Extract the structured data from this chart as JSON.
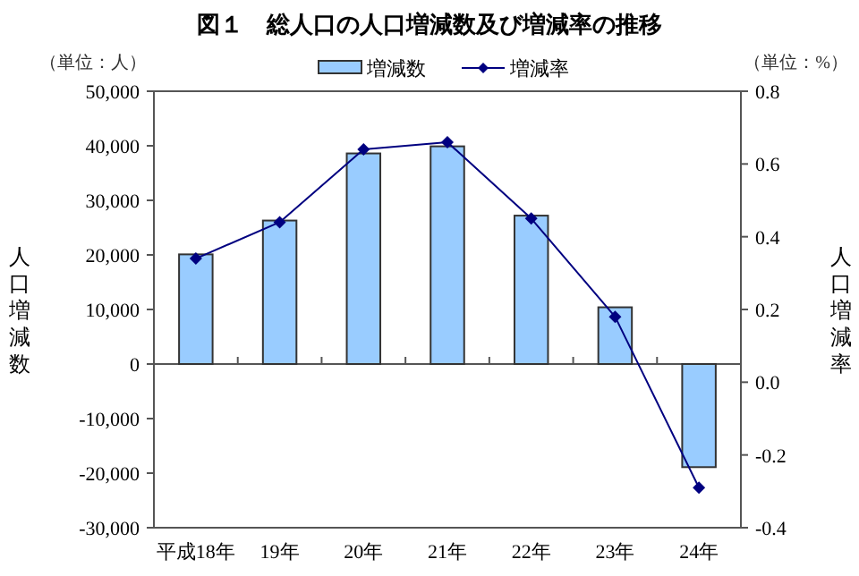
{
  "chart_data": {
    "type": "bar",
    "title": "図１　総人口の人口増減数及び増減率の推移",
    "categories": [
      "平成18年",
      "19年",
      "20年",
      "21年",
      "22年",
      "23年",
      "24年"
    ],
    "series": [
      {
        "name": "増減数",
        "color": "#99ccff",
        "values": [
          20100,
          26300,
          38600,
          39900,
          27200,
          10400,
          -18900
        ]
      },
      {
        "name": "増減率",
        "type": "line",
        "axis": "y2",
        "color": "#000080",
        "marker": "diamond",
        "line_style": "solid",
        "values": [
          0.34,
          0.44,
          0.64,
          0.66,
          0.45,
          0.18,
          -0.29
        ]
      }
    ],
    "ylabel": "人口増減数",
    "y2label": "人口増減率",
    "ylim": [
      -30000,
      50000
    ],
    "yticks": [
      {
        "value": -30000,
        "label": "-30,000"
      },
      {
        "value": -20000,
        "label": "-20,000"
      },
      {
        "value": -10000,
        "label": "-10,000"
      },
      0,
      {
        "value": 10000,
        "label": "10,000"
      },
      {
        "value": 20000,
        "label": "20,000"
      },
      {
        "value": 30000,
        "label": "30,000"
      },
      {
        "value": 40000,
        "label": "40,000"
      },
      {
        "value": 50000,
        "label": "50,000"
      }
    ],
    "y2lim": [
      -0.4,
      0.8
    ],
    "y2ticks": [
      {
        "value": -0.4,
        "label": "-0.4"
      },
      {
        "value": -0.2,
        "label": "-0.2"
      },
      {
        "value": 0,
        "label": "0.0"
      },
      0.2,
      0.4,
      0.6,
      0.8
    ],
    "annotations": [
      "（単位：人）",
      "（単位：%）"
    ],
    "legend": "top"
  }
}
